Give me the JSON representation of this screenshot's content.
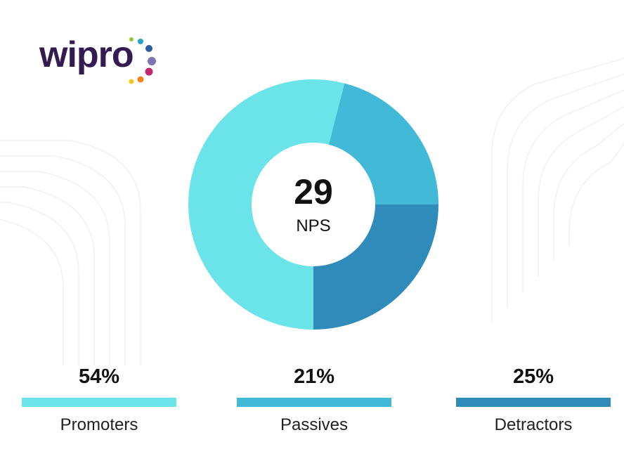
{
  "logo": {
    "text": "wipro",
    "dot_colors": [
      "#8cc63f",
      "#2aa5c5",
      "#2f5a9e",
      "#7c73b0",
      "#c2266c",
      "#f58220",
      "#fcc419"
    ]
  },
  "chart_data": {
    "type": "pie",
    "variant": "donut",
    "center_value": "29",
    "center_label": "NPS",
    "slices": [
      {
        "name": "Promoters",
        "value": 54,
        "label": "54%",
        "color": "#6ae4e8"
      },
      {
        "name": "Passives",
        "value": 21,
        "label": "21%",
        "color": "#43b9d8"
      },
      {
        "name": "Detractors",
        "value": 25,
        "label": "25%",
        "color": "#2e8bba"
      }
    ],
    "legend_placement": "bottom"
  }
}
